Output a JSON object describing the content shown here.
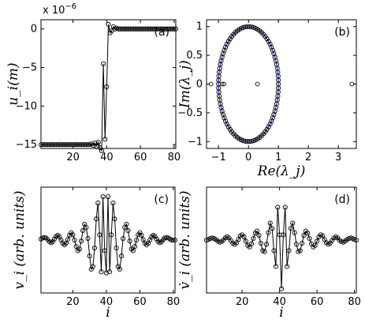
{
  "chart_data": [
    {
      "type": "line",
      "panel": "(a)",
      "ylabel": "u_i(m)",
      "y_multiplier": "x 10",
      "y_multiplier_exp": "−6",
      "xlim": [
        1,
        81
      ],
      "ylim": [
        -15.5,
        1.2
      ],
      "xticks": [
        20,
        40,
        60,
        80
      ],
      "yticks": [
        0,
        -5,
        -10,
        -15
      ],
      "ytick_labels": [
        "0",
        "−5",
        "−10",
        "−15"
      ],
      "series": [
        {
          "x": [
            1,
            2,
            3,
            4,
            5,
            6,
            7,
            8,
            9,
            10,
            11,
            12,
            13,
            14,
            15,
            16,
            17,
            18,
            19,
            20,
            21,
            22,
            23,
            24,
            25,
            26,
            27,
            28,
            29,
            30,
            31,
            32,
            33,
            34,
            35,
            36,
            37,
            38,
            39,
            40,
            41,
            42,
            43,
            44,
            45,
            46,
            47,
            48,
            49,
            50,
            51,
            52,
            53,
            54,
            55,
            56,
            57,
            58,
            59,
            60,
            61,
            62,
            63,
            64,
            65,
            66,
            67,
            68,
            69,
            70,
            71,
            72,
            73,
            74,
            75,
            76,
            77,
            78,
            79,
            80,
            81
          ],
          "y": [
            -15,
            -15,
            -15,
            -15,
            -15,
            -15,
            -15,
            -15,
            -15,
            -15,
            -15,
            -15,
            -15,
            -15,
            -15,
            -15,
            -15,
            -15,
            -15,
            -15,
            -15,
            -15,
            -15,
            -15,
            -15,
            -15,
            -15,
            -15,
            -15,
            -15,
            -14.9,
            -15.1,
            -14.8,
            -15.2,
            -14.7,
            -15.4,
            -15.8,
            -4.5,
            -14.3,
            -7.5,
            0.6,
            -0.5,
            -0.2,
            0.3,
            0,
            0.1,
            0,
            0,
            0,
            0,
            0,
            0,
            0,
            0,
            0,
            0,
            0,
            0,
            0,
            0,
            0,
            0,
            0,
            0,
            0,
            0,
            0,
            0,
            0,
            0,
            0,
            0,
            0,
            0,
            0,
            0,
            0,
            0,
            0,
            0,
            0
          ]
        }
      ]
    },
    {
      "type": "scatter",
      "panel": "(b)",
      "xlabel": "Re(λ_j)",
      "ylabel": "Im(λ_j)",
      "xlim": [
        -1.4,
        3.6
      ],
      "ylim": [
        -1.12,
        1.12
      ],
      "xticks": [
        -1,
        0,
        1,
        2,
        3
      ],
      "xtick_labels": [
        "−1",
        "0",
        "1",
        "2",
        "3"
      ],
      "yticks": [
        1,
        0.5,
        0,
        -0.5,
        -1
      ],
      "ytick_labels": [
        "1",
        "0.5",
        "0",
        "−0.5",
        "−1"
      ],
      "unit_circle_color": "#1f2fbf",
      "points_on_circle_angles_deg": [
        0,
        4,
        8,
        12,
        16,
        20,
        24,
        28,
        32,
        36,
        40,
        44,
        48,
        52,
        56,
        60,
        64,
        68,
        72,
        76,
        80,
        84,
        88,
        92,
        96,
        100,
        104,
        108,
        112,
        116,
        120,
        124,
        128,
        132,
        136,
        140,
        144,
        148,
        152,
        156,
        160,
        164,
        168,
        172,
        176,
        180,
        184,
        188,
        192,
        196,
        200,
        204,
        208,
        212,
        216,
        220,
        224,
        228,
        232,
        236,
        240,
        244,
        248,
        252,
        256,
        260,
        264,
        268,
        272,
        276,
        280,
        284,
        288,
        292,
        296,
        300,
        304,
        308,
        312,
        316,
        320,
        324,
        328,
        332,
        336,
        340,
        344,
        348,
        352,
        356
      ],
      "extra_points": [
        {
          "x": -1.25,
          "y": 0
        },
        {
          "x": 0.3,
          "y": 0
        },
        {
          "x": 3.45,
          "y": 0
        },
        {
          "x": -0.82,
          "y": 0
        },
        {
          "x": -0.88,
          "y": 0
        }
      ]
    },
    {
      "type": "line",
      "panel": "(c)",
      "xlabel": "i",
      "ylabel": "v_i (arb. units)",
      "xlim": [
        1,
        81
      ],
      "ylim": [
        -1,
        1
      ],
      "xticks": [
        20,
        40,
        60,
        80
      ],
      "series": [
        {
          "x": [
            1,
            2,
            3,
            4,
            5,
            6,
            7,
            8,
            9,
            10,
            11,
            12,
            13,
            14,
            15,
            16,
            17,
            18,
            19,
            20,
            21,
            22,
            23,
            24,
            25,
            26,
            27,
            28,
            29,
            30,
            31,
            32,
            33,
            34,
            35,
            36,
            37,
            38,
            39,
            40,
            41,
            42,
            43,
            44,
            45,
            46,
            47,
            48,
            49,
            50,
            51,
            52,
            53,
            54,
            55,
            56,
            57,
            58,
            59,
            60,
            61,
            62,
            63,
            64,
            65,
            66,
            67,
            68,
            69,
            70,
            71,
            72,
            73,
            74,
            75,
            76,
            77,
            78,
            79,
            80,
            81
          ],
          "y": [
            0.02,
            0.04,
            0.05,
            0.04,
            0.01,
            -0.03,
            -0.05,
            -0.03,
            0.02,
            0.07,
            0.09,
            0.06,
            0.0,
            -0.06,
            -0.09,
            -0.06,
            0.01,
            0.09,
            0.14,
            0.1,
            0.0,
            -0.12,
            -0.2,
            -0.17,
            -0.02,
            0.18,
            0.3,
            0.24,
            0.03,
            -0.3,
            -0.55,
            -0.5,
            -0.15,
            0.4,
            0.7,
            0.1,
            -0.6,
            0.82,
            -0.2,
            -0.62,
            0.82,
            -0.6,
            0.1,
            0.7,
            0.4,
            -0.15,
            -0.5,
            -0.55,
            -0.3,
            0.03,
            0.24,
            0.3,
            0.18,
            -0.02,
            -0.17,
            -0.2,
            -0.12,
            0.0,
            0.1,
            0.14,
            0.09,
            0.01,
            -0.06,
            -0.09,
            -0.06,
            0.0,
            0.06,
            0.09,
            0.07,
            0.02,
            -0.03,
            -0.05,
            -0.03,
            0.01,
            0.04,
            0.05,
            0.04,
            0.02,
            0.0,
            0.0,
            0.0
          ]
        }
      ]
    },
    {
      "type": "line",
      "panel": "(d)",
      "xlabel": "i",
      "ylabel": "v̇_i (arb. units)",
      "xlim": [
        1,
        81
      ],
      "ylim": [
        -1,
        1
      ],
      "xticks": [
        20,
        40,
        60,
        80
      ],
      "series": [
        {
          "x": [
            1,
            2,
            3,
            4,
            5,
            6,
            7,
            8,
            9,
            10,
            11,
            12,
            13,
            14,
            15,
            16,
            17,
            18,
            19,
            20,
            21,
            22,
            23,
            24,
            25,
            26,
            27,
            28,
            29,
            30,
            31,
            32,
            33,
            34,
            35,
            36,
            37,
            38,
            39,
            40,
            41,
            42,
            43,
            44,
            45,
            46,
            47,
            48,
            49,
            50,
            51,
            52,
            53,
            54,
            55,
            56,
            57,
            58,
            59,
            60,
            61,
            62,
            63,
            64,
            65,
            66,
            67,
            68,
            69,
            70,
            71,
            72,
            73,
            74,
            75,
            76,
            77,
            78,
            79,
            80,
            81
          ],
          "y": [
            0.0,
            0.01,
            0.03,
            0.04,
            0.03,
            0.01,
            -0.02,
            -0.04,
            -0.03,
            0.0,
            0.04,
            0.06,
            0.04,
            -0.01,
            -0.06,
            -0.08,
            -0.05,
            0.01,
            0.08,
            0.1,
            0.06,
            -0.02,
            -0.1,
            -0.13,
            -0.07,
            0.03,
            0.13,
            0.17,
            0.09,
            -0.06,
            -0.2,
            -0.22,
            -0.08,
            0.14,
            0.32,
            0.22,
            -0.2,
            -0.5,
            0.62,
            0.1,
            -0.92,
            0.1,
            0.62,
            -0.5,
            -0.2,
            0.22,
            0.32,
            0.14,
            -0.08,
            -0.22,
            -0.2,
            -0.06,
            0.09,
            0.17,
            0.13,
            0.03,
            -0.07,
            -0.13,
            -0.1,
            -0.02,
            0.06,
            0.1,
            0.08,
            0.01,
            -0.05,
            -0.08,
            -0.06,
            -0.01,
            0.04,
            0.06,
            0.04,
            0.0,
            -0.03,
            -0.04,
            -0.02,
            0.01,
            0.03,
            0.04,
            0.03,
            0.01,
            0.0
          ]
        }
      ]
    }
  ]
}
